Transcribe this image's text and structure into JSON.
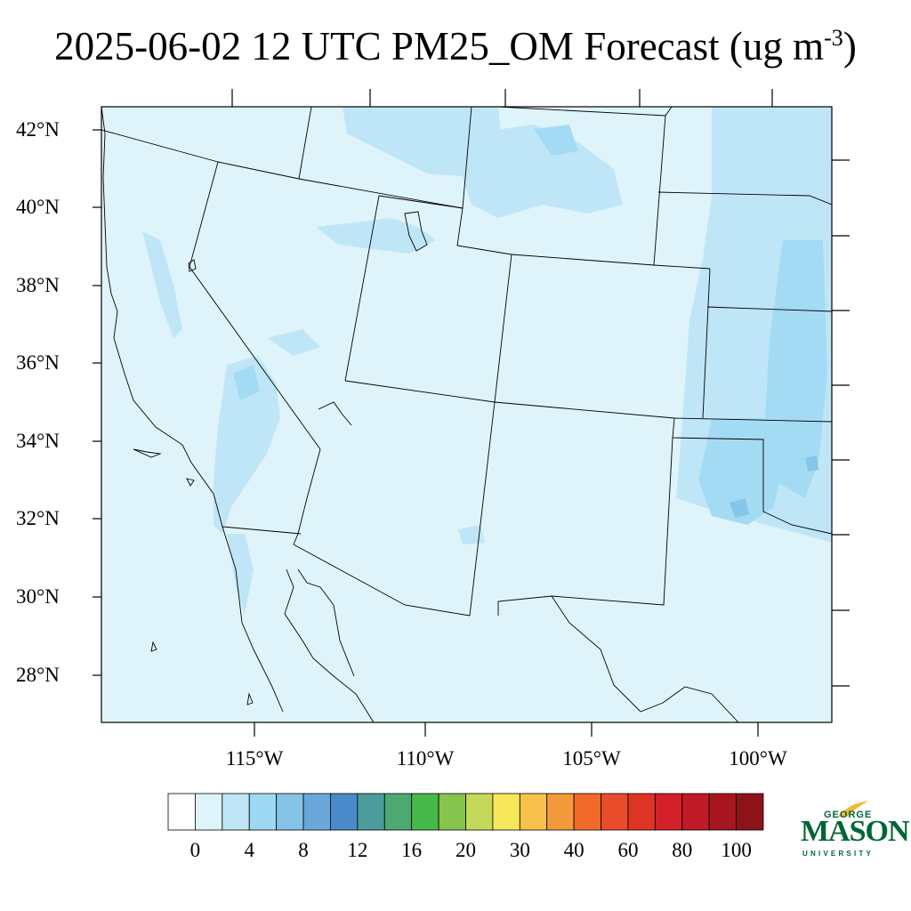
{
  "title": {
    "text": "2025-06-02 12 UTC PM25_OM Forecast (ug m",
    "superscript": "-3",
    "close": ")"
  },
  "map": {
    "lat_labels": [
      "42°N",
      "40°N",
      "38°N",
      "36°N",
      "34°N",
      "32°N",
      "30°N",
      "28°N"
    ],
    "lon_labels": [
      "115°W",
      "110°W",
      "105°W",
      "100°W"
    ],
    "background_color": "#dff3fb",
    "field_colors": {
      "level1": "#bfe6f6",
      "level2": "#a4dbf4",
      "level3": "#86c6e8"
    }
  },
  "colorbar": {
    "colors": [
      "#ffffff",
      "#dff3fb",
      "#bfe6f6",
      "#9fd8f2",
      "#84c2e6",
      "#6aa8dc",
      "#4a8ccb",
      "#4b9c9a",
      "#4caa70",
      "#47b84a",
      "#86c44c",
      "#c4d85a",
      "#f6e85a",
      "#f7c04a",
      "#f59a3a",
      "#f26a2a",
      "#e84c2a",
      "#de3424",
      "#d42028",
      "#bf1a26",
      "#a8161f",
      "#8c1418"
    ],
    "labels": [
      "0",
      "4",
      "8",
      "12",
      "16",
      "20",
      "30",
      "40",
      "60",
      "80",
      "100"
    ]
  },
  "logo": {
    "line1": "GEORGE",
    "line2": "MASON",
    "line3": "UNIVERSITY"
  }
}
